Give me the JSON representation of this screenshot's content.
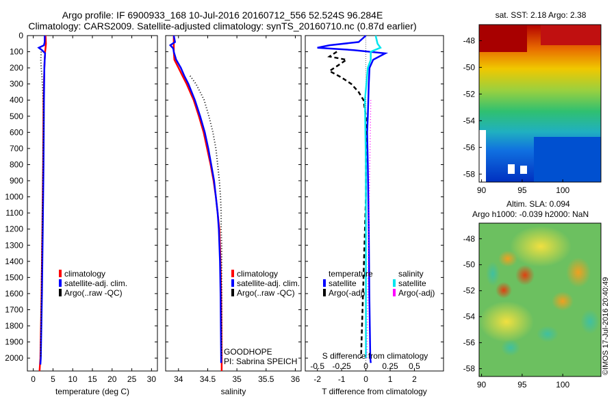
{
  "header": {
    "line1": "Argo profile: IF 6900933_168 10-Jul-2016 20160712_556 52.524S 96.284E",
    "line2": "Climatology: CARS2009. Satellite-adjusted climatology: synTS_20160710.nc (0.87d earlier)"
  },
  "depth_ticks": [
    "0",
    "100",
    "200",
    "300",
    "400",
    "500",
    "600",
    "700",
    "800",
    "900",
    "1000",
    "1100",
    "1200",
    "1300",
    "1400",
    "1500",
    "1600",
    "1700",
    "1800",
    "1900",
    "2000"
  ],
  "colors": {
    "climatology": "#ff0000",
    "satellite": "#0000ff",
    "argo": "#000000",
    "sal_satellite": "#00e5ee",
    "sal_argo": "#ff00ff"
  },
  "chart_data": [
    {
      "type": "line",
      "xlabel": "temperature (deg C)",
      "xticks": [
        "0",
        "5",
        "10",
        "15",
        "20",
        "25",
        "30"
      ],
      "xlim": [
        -1.5,
        31.5
      ],
      "ylim": [
        2080,
        0
      ],
      "legend": [
        "climatology",
        "satellite-adj. clim.",
        "Argo(..raw -QC)"
      ],
      "series": [
        {
          "name": "climatology",
          "depth": [
            0,
            50,
            80,
            100,
            150,
            200,
            400,
            800,
            1200,
            1600,
            2000,
            2080
          ],
          "values": [
            3.1,
            3.2,
            3.1,
            3.0,
            2.9,
            2.8,
            2.6,
            2.5,
            2.3,
            2.1,
            1.8,
            1.6
          ]
        },
        {
          "name": "satellite-adj. clim.",
          "depth": [
            0,
            40,
            60,
            75,
            90,
            110,
            150,
            200,
            400,
            800,
            1200,
            1600,
            2000,
            2040
          ],
          "values": [
            2.9,
            2.9,
            2.7,
            1.4,
            2.2,
            3.0,
            2.9,
            2.8,
            2.7,
            2.6,
            2.4,
            2.2,
            1.9,
            1.8
          ]
        },
        {
          "name": "Argo(..raw -QC)",
          "depth": [
            100,
            150,
            200,
            250,
            300,
            350,
            400,
            500,
            600,
            700,
            800,
            900,
            1000,
            1100,
            1200,
            1300,
            1400,
            1500,
            1600,
            1700,
            1800,
            1900,
            2000
          ],
          "values": [
            2.0,
            1.9,
            2.0,
            2.2,
            2.3,
            2.4,
            2.5,
            2.6,
            2.6,
            2.5,
            2.5,
            2.4,
            2.4,
            2.3,
            2.3,
            2.2,
            2.2,
            2.1,
            2.1,
            2.0,
            2.0,
            1.9,
            1.9
          ]
        }
      ]
    },
    {
      "type": "line",
      "xlabel": "salinity",
      "xticks": [
        "34",
        "34.5",
        "35",
        "35.5",
        "36"
      ],
      "xlim": [
        33.78,
        36.1
      ],
      "ylim": [
        2080,
        0
      ],
      "legend": [
        "climatology",
        "satellite-adj. clim.",
        "Argo(..raw -QC)"
      ],
      "annotation": [
        "GOODHOPE",
        "PI: Sabrina SPEICH"
      ],
      "series": [
        {
          "name": "climatology",
          "depth": [
            0,
            100,
            150,
            200,
            250,
            300,
            400,
            500,
            600,
            700,
            800,
            900,
            1000,
            1100,
            1200,
            1400,
            1600,
            2000,
            2080
          ],
          "values": [
            33.92,
            33.92,
            33.93,
            34.0,
            34.07,
            34.14,
            34.26,
            34.35,
            34.43,
            34.49,
            34.55,
            34.6,
            34.64,
            34.67,
            34.7,
            34.72,
            34.73,
            34.74,
            34.74
          ]
        },
        {
          "name": "satellite-adj. clim.",
          "depth": [
            0,
            40,
            60,
            80,
            100,
            150,
            200,
            250,
            300,
            400,
            500,
            600,
            700,
            800,
            900,
            1000,
            1100,
            1200,
            1400,
            1600,
            2000,
            2030
          ],
          "values": [
            33.92,
            33.94,
            33.86,
            33.91,
            33.92,
            33.96,
            34.04,
            34.1,
            34.17,
            34.28,
            34.37,
            34.45,
            34.51,
            34.56,
            34.61,
            34.64,
            34.67,
            34.69,
            34.71,
            34.72,
            34.73,
            34.73
          ]
        },
        {
          "name": "Argo(..raw -QC)",
          "depth": [
            250,
            300,
            350,
            400,
            500,
            600,
            700,
            800,
            900,
            1000,
            1100,
            1200,
            1300,
            1400,
            1500,
            1600,
            1700,
            1800,
            1900,
            2000
          ],
          "values": [
            34.2,
            34.3,
            34.37,
            34.44,
            34.52,
            34.59,
            34.64,
            34.67,
            34.7,
            34.72,
            34.73,
            34.73,
            34.74,
            34.74,
            34.74,
            34.74,
            34.74,
            34.74,
            34.74,
            34.74
          ]
        }
      ]
    },
    {
      "type": "line",
      "xlabel": "T difference from climatology",
      "xlabel2": "S difference from climatology",
      "xticks": [
        "-2",
        "-1",
        "0",
        "1",
        "2"
      ],
      "xticks2": [
        "-0.5",
        "-0.25",
        "0",
        "0.25",
        "0.5"
      ],
      "xlim": [
        -2.5,
        3.2
      ],
      "ylim": [
        2080,
        0
      ],
      "legend_headers": [
        "temperature",
        "salinity"
      ],
      "legend": [
        "satellite",
        "Argo(-adj)",
        "satellite",
        "Argo(-adj)"
      ],
      "series": [
        {
          "name": "satellite",
          "depth": [
            0,
            40,
            60,
            75,
            90,
            110,
            150,
            200,
            300,
            400,
            500,
            600,
            800,
            1000,
            1200,
            1600,
            2000,
            2030
          ],
          "values": [
            0,
            -0.3,
            -1.5,
            -2.0,
            -0.5,
            0.8,
            0.3,
            0.15,
            0.12,
            0.1,
            0.08,
            0.05,
            0.08,
            0.1,
            0.12,
            0.14,
            0.18,
            0.2
          ]
        },
        {
          "name": "Argo(-adj)",
          "depth": [
            100,
            130,
            150,
            180,
            220,
            260,
            300,
            350,
            400,
            500,
            700,
            1000,
            1500,
            2000
          ],
          "values": [
            -1.2,
            -1.5,
            -0.8,
            -1.1,
            -1.5,
            -1.0,
            -0.6,
            -0.3,
            -0.1,
            0.0,
            0.0,
            0.0,
            -0.1,
            -0.2
          ]
        },
        {
          "name": "satellite",
          "depth": [
            0,
            50,
            75,
            100,
            150,
            200,
            400,
            800,
            1200,
            1600,
            2000
          ],
          "values": [
            0.1,
            0.12,
            0.15,
            0.05,
            0.05,
            0.02,
            -0.01,
            0.0,
            0.0,
            0.0,
            0.0
          ]
        },
        {
          "name": "Argo(-adj)",
          "depth": [
            400,
            800,
            1200,
            1600,
            2000
          ],
          "values": [
            0.05,
            0.04,
            0.03,
            0.02,
            0.01
          ]
        }
      ]
    },
    {
      "type": "heatmap",
      "title": "sat. SST: 2.18  Argo: 2.38",
      "xticks": [
        "90",
        "95",
        "100"
      ],
      "yticks": [
        "-48",
        "-50",
        "-52",
        "-54",
        "-56",
        "-58"
      ]
    },
    {
      "type": "heatmap",
      "title_line1": "Altim. SLA: 0.094",
      "title_line2": "Argo h1000: -0.039 h2000: NaN",
      "xticks": [
        "90",
        "95",
        "100"
      ],
      "yticks": [
        "-48",
        "-50",
        "-52",
        "-54",
        "-56",
        "-58"
      ]
    }
  ],
  "stamp": "©IMOS 17-Jul-2016 20:40:49"
}
